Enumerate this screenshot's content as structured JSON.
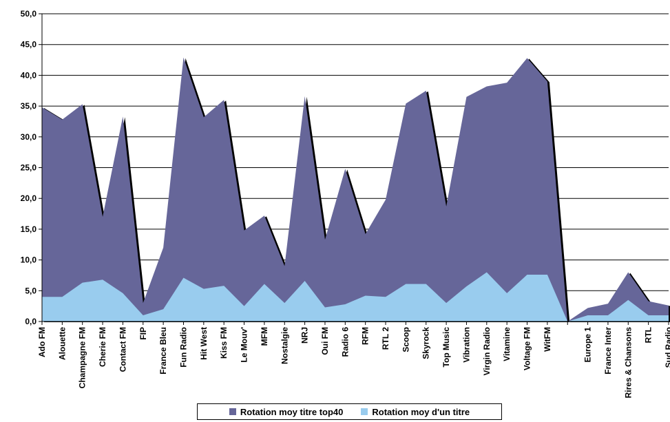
{
  "chart_data": {
    "type": "area",
    "ylim": [
      0,
      50
    ],
    "yticks": [
      "0,0",
      "5,0",
      "10,0",
      "15,0",
      "20,0",
      "25,0",
      "30,0",
      "35,0",
      "40,0",
      "45,0",
      "50,0"
    ],
    "grid": true,
    "legend_position": "bottom",
    "categories": [
      "Ado FM",
      "Alouette",
      "Champagne FM",
      "Cherie FM",
      "Contact FM",
      "FIP",
      "France Bleu",
      "Fun Radio",
      "Hit West",
      "Kiss FM",
      "Le Mouv'",
      "MFM",
      "Nostalgie",
      "NRJ",
      "Oui FM",
      "Radio 6",
      "RFM",
      "RTL 2",
      "Scoop",
      "Skyrock",
      "Top Music",
      "Vibration",
      "Virgin Radio",
      "Vitamine",
      "Voltage FM",
      "WitFM",
      "",
      "Europe 1",
      "France Inter",
      "Rires & Chansons",
      "RTL",
      "Sud Radio"
    ],
    "series": [
      {
        "name": "Rotation moy titre top40",
        "color": "#666699",
        "values": [
          34.8,
          32.8,
          35.3,
          17.0,
          33.3,
          3.0,
          12.0,
          42.9,
          33.2,
          36.0,
          14.8,
          17.2,
          9.0,
          36.6,
          13.3,
          24.8,
          14.2,
          19.8,
          35.4,
          37.5,
          18.7,
          36.5,
          38.2,
          38.8,
          42.8,
          39.0,
          0,
          2.2,
          2.9,
          8.0,
          3.3,
          2.6
        ]
      },
      {
        "name": "Rotation moy d'un titre",
        "color": "#99ccee",
        "values": [
          4.0,
          4.0,
          6.3,
          6.8,
          4.6,
          1.0,
          2.0,
          7.1,
          5.3,
          5.8,
          2.5,
          6.1,
          3.0,
          6.6,
          2.3,
          2.8,
          4.2,
          4.0,
          6.1,
          6.1,
          3.0,
          5.7,
          8.0,
          4.6,
          7.6,
          7.6,
          0,
          1.0,
          1.0,
          3.5,
          1.0,
          1.0
        ]
      }
    ]
  }
}
